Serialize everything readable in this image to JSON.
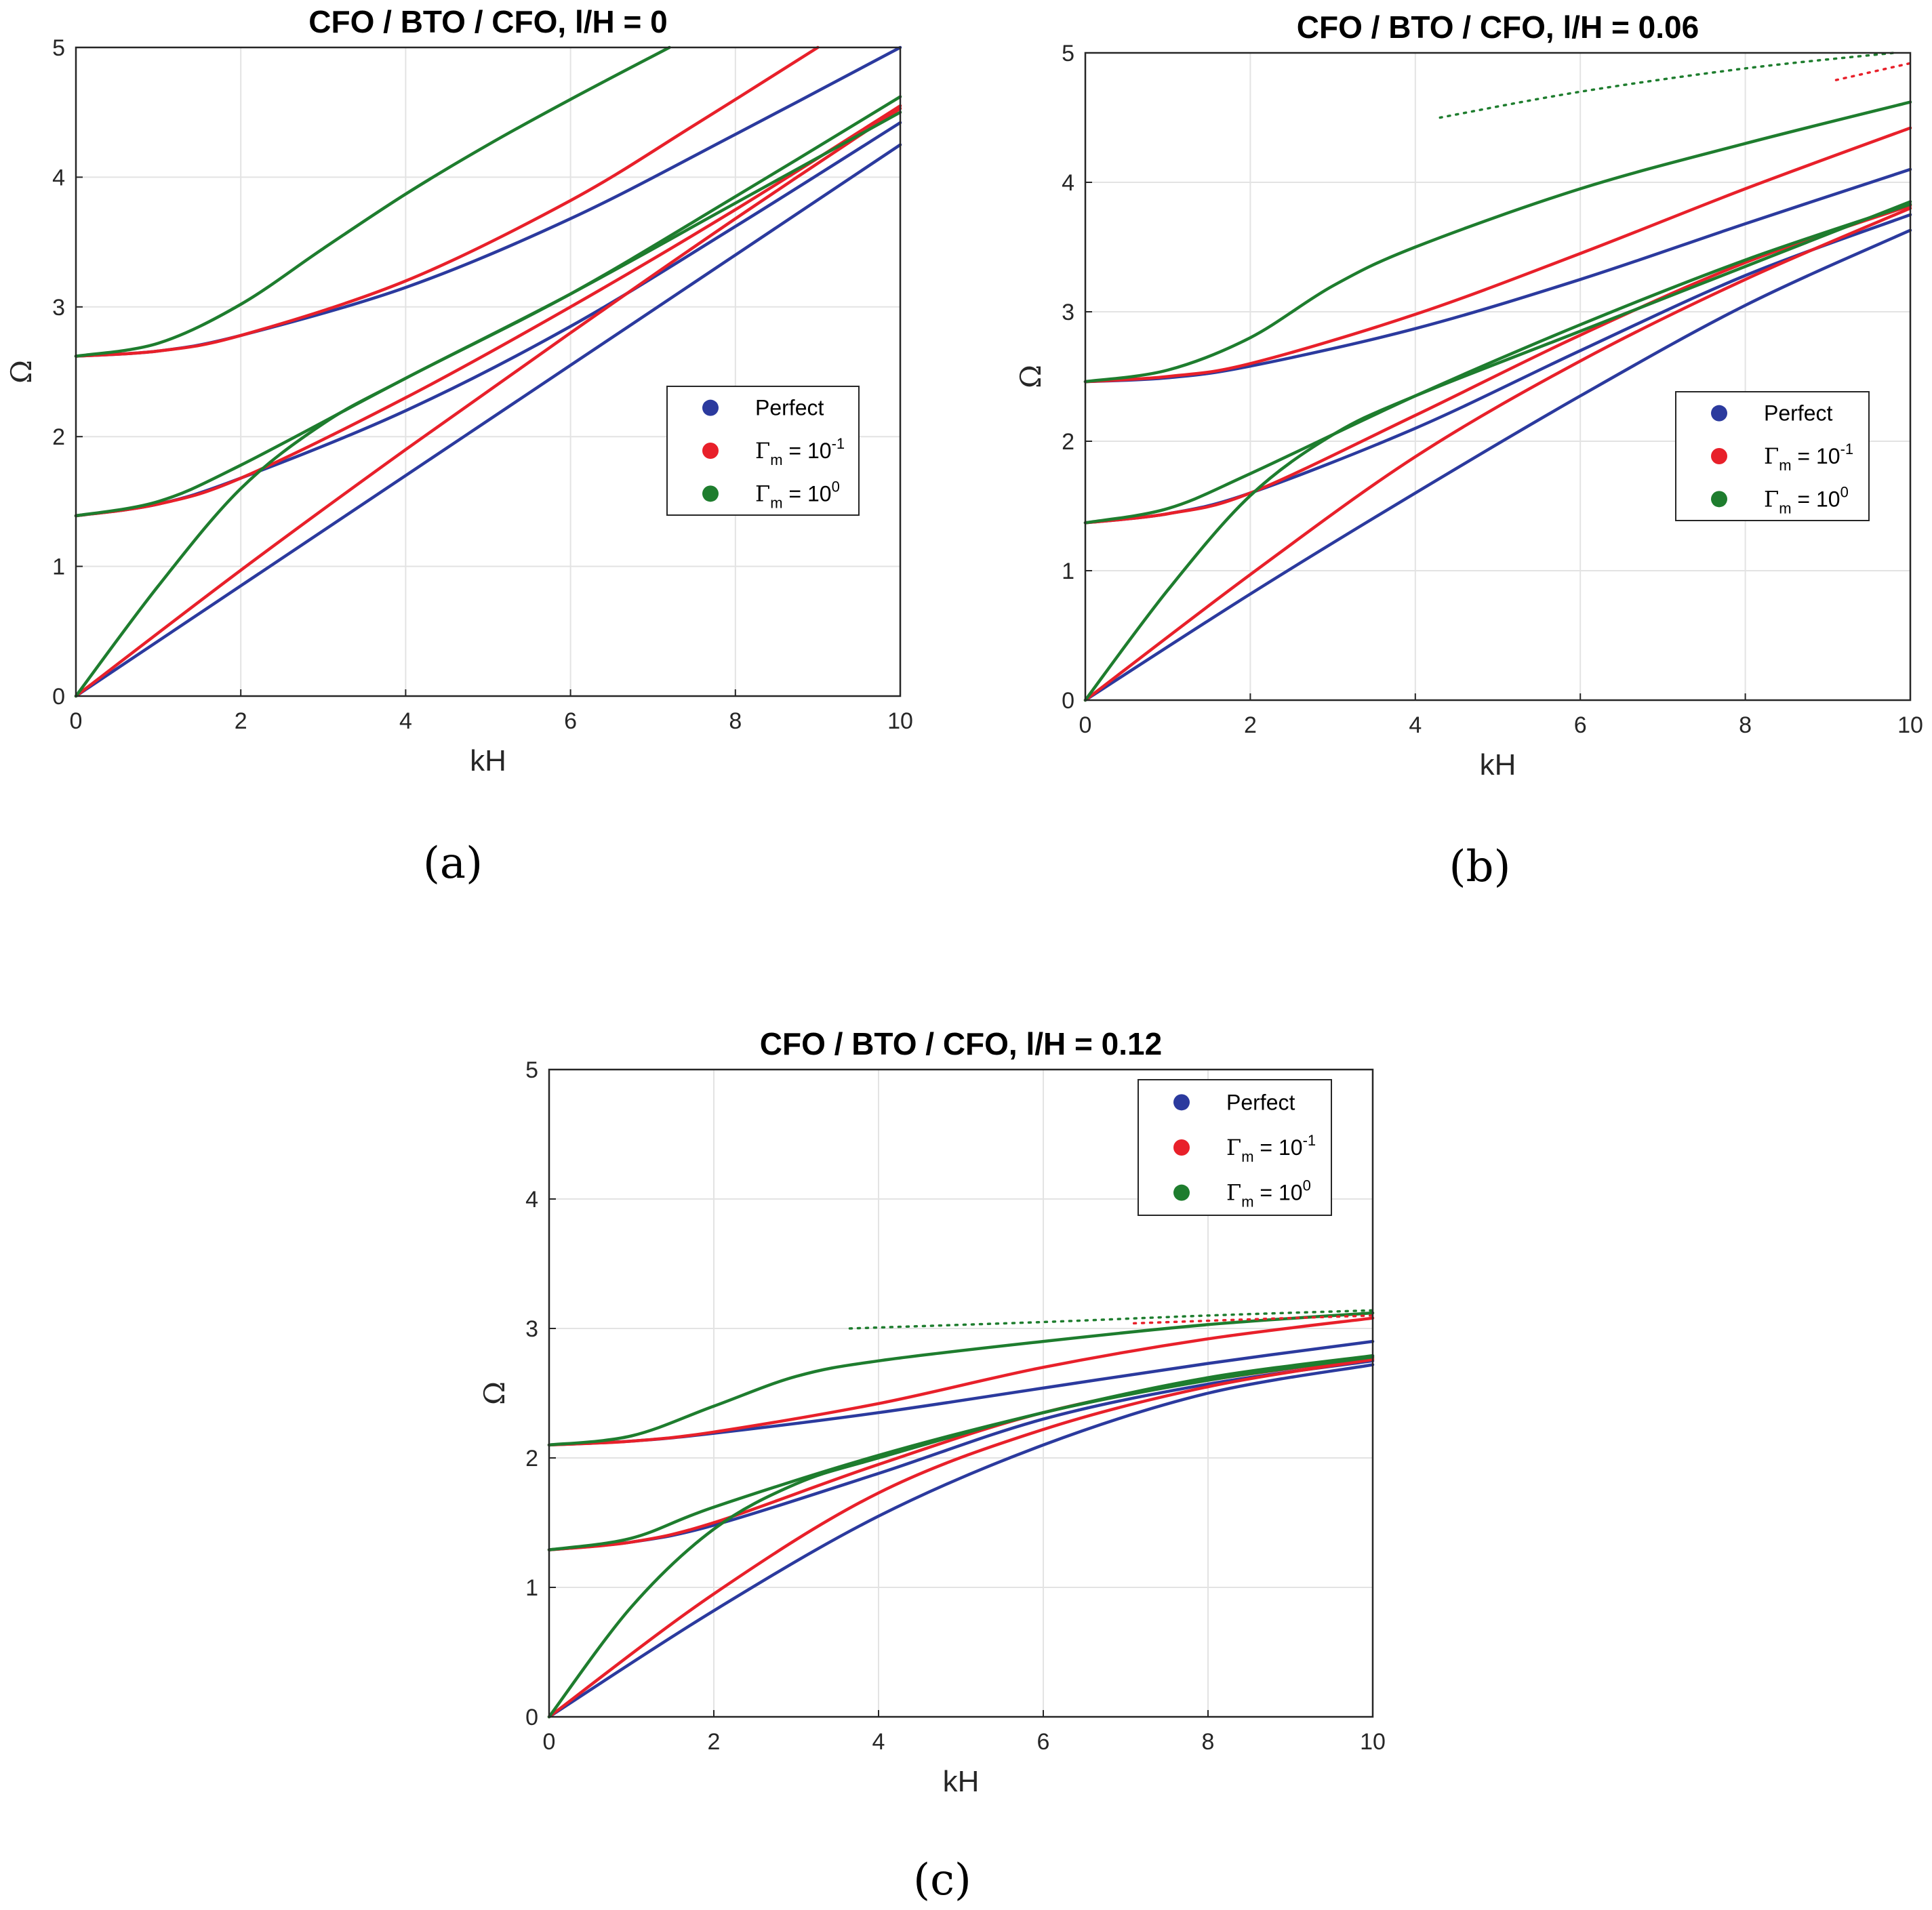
{
  "colors": {
    "perfect": "#2b3a9e",
    "gamma_m1": "#e8202a",
    "gamma_0": "#1e7d2e"
  },
  "chart_data": [
    {
      "type": "line",
      "panel": "a",
      "caption": "(a)",
      "title": "CFO / BTO / CFO, l/H = 0",
      "xlabel": "kH",
      "ylabel": "Ω",
      "xlim": [
        0,
        10
      ],
      "ylim": [
        0,
        5
      ],
      "xticks": [
        "0",
        "2",
        "4",
        "6",
        "8",
        "10"
      ],
      "yticks": [
        "0",
        "1",
        "2",
        "3",
        "4",
        "5"
      ],
      "grid": true,
      "legend_position": "right",
      "legend": [
        {
          "key": "perfect",
          "label": "Perfect"
        },
        {
          "key": "gamma_m1",
          "label_main": "Γ",
          "label_sub": "m",
          "label_mid": " = 10",
          "label_sup": "-1"
        },
        {
          "key": "gamma_0",
          "label_main": "Γ",
          "label_sub": "m",
          "label_mid": " = 10",
          "label_sup": "0"
        }
      ],
      "series": [
        {
          "key": "perfect",
          "name": "Perfect mode 1",
          "x": [
            0,
            2,
            4,
            6,
            8,
            10
          ],
          "y": [
            0,
            0.85,
            1.7,
            2.55,
            3.4,
            4.25
          ]
        },
        {
          "key": "perfect",
          "name": "Perfect mode 2",
          "x": [
            0,
            1,
            2,
            4,
            6,
            8,
            10
          ],
          "y": [
            1.39,
            1.48,
            1.68,
            2.2,
            2.85,
            3.62,
            4.42
          ]
        },
        {
          "key": "perfect",
          "name": "Perfect mode 3",
          "x": [
            0,
            1,
            2,
            4,
            6,
            8,
            10
          ],
          "y": [
            2.62,
            2.66,
            2.78,
            3.15,
            3.68,
            4.33,
            5.0
          ]
        },
        {
          "key": "gamma_m1",
          "name": "Γm=10^-1 mode 1",
          "x": [
            0,
            2,
            4,
            6,
            8,
            10
          ],
          "y": [
            0,
            0.97,
            1.9,
            2.8,
            3.68,
            4.53
          ]
        },
        {
          "key": "gamma_m1",
          "name": "Γm=10^-1 mode 2",
          "x": [
            0,
            1,
            2,
            4,
            6,
            8,
            10
          ],
          "y": [
            1.39,
            1.48,
            1.68,
            2.3,
            3.0,
            3.75,
            4.55
          ]
        },
        {
          "key": "gamma_m1",
          "name": "Γm=10^-1 mode 3",
          "x": [
            0,
            1,
            2,
            4,
            6,
            7.5,
            9
          ],
          "y": [
            2.62,
            2.66,
            2.78,
            3.2,
            3.82,
            4.4,
            5.0
          ]
        },
        {
          "key": "gamma_0",
          "name": "Γm=10^0 mode 1",
          "x": [
            0,
            1,
            2,
            3,
            4,
            6,
            8,
            10
          ],
          "y": [
            0,
            0.85,
            1.6,
            2.1,
            2.45,
            3.1,
            3.8,
            4.5
          ]
        },
        {
          "key": "gamma_0",
          "name": "Γm=10^0 mode 2",
          "x": [
            0,
            1,
            2,
            4,
            6,
            8,
            10
          ],
          "y": [
            1.39,
            1.5,
            1.78,
            2.45,
            3.1,
            3.85,
            4.62
          ]
        },
        {
          "key": "gamma_0",
          "name": "Γm=10^0 mode 3",
          "x": [
            0,
            1,
            2,
            3,
            4,
            5,
            6,
            7.2
          ],
          "y": [
            2.62,
            2.72,
            3.02,
            3.45,
            3.87,
            4.25,
            4.6,
            5.0
          ]
        }
      ]
    },
    {
      "type": "line",
      "panel": "b",
      "caption": "(b)",
      "title": "CFO / BTO / CFO, l/H = 0.06",
      "xlabel": "kH",
      "ylabel": "Ω",
      "xlim": [
        0,
        10
      ],
      "ylim": [
        0,
        5
      ],
      "xticks": [
        "0",
        "2",
        "4",
        "6",
        "8",
        "10"
      ],
      "yticks": [
        "0",
        "1",
        "2",
        "3",
        "4",
        "5"
      ],
      "grid": true,
      "legend_position": "right",
      "legend": [
        {
          "key": "perfect",
          "label": "Perfect"
        },
        {
          "key": "gamma_m1",
          "label_main": "Γ",
          "label_sub": "m",
          "label_mid": " = 10",
          "label_sup": "-1"
        },
        {
          "key": "gamma_0",
          "label_main": "Γ",
          "label_sub": "m",
          "label_mid": " = 10",
          "label_sup": "0"
        }
      ],
      "series": [
        {
          "key": "perfect",
          "name": "Perfect mode 1",
          "x": [
            0,
            2,
            4,
            6,
            8,
            10
          ],
          "y": [
            0,
            0.82,
            1.6,
            2.35,
            3.05,
            3.63
          ]
        },
        {
          "key": "perfect",
          "name": "Perfect mode 2",
          "x": [
            0,
            1,
            2,
            4,
            6,
            8,
            10
          ],
          "y": [
            1.37,
            1.44,
            1.6,
            2.1,
            2.7,
            3.28,
            3.75
          ]
        },
        {
          "key": "perfect",
          "name": "Perfect mode 3",
          "x": [
            0,
            1,
            2,
            4,
            6,
            8,
            10
          ],
          "y": [
            2.46,
            2.49,
            2.58,
            2.87,
            3.25,
            3.68,
            4.1
          ]
        },
        {
          "key": "gamma_m1",
          "name": "Γm=10^-1 mode 1",
          "x": [
            0,
            2,
            4,
            6,
            8,
            10
          ],
          "y": [
            0,
            0.97,
            1.88,
            2.62,
            3.25,
            3.8
          ]
        },
        {
          "key": "gamma_m1",
          "name": "Γm=10^-1 mode 2",
          "x": [
            0,
            1,
            2,
            4,
            6,
            8,
            10
          ],
          "y": [
            1.37,
            1.44,
            1.6,
            2.2,
            2.82,
            3.38,
            3.82
          ]
        },
        {
          "key": "gamma_m1",
          "name": "Γm=10^-1 mode 3",
          "x": [
            0,
            1,
            2,
            4,
            6,
            8,
            10
          ],
          "y": [
            2.46,
            2.5,
            2.6,
            2.98,
            3.45,
            3.95,
            4.42
          ]
        },
        {
          "key": "gamma_0",
          "name": "Γm=10^0 mode 1",
          "x": [
            0,
            1,
            2,
            3,
            4,
            6,
            8,
            10
          ],
          "y": [
            0,
            0.85,
            1.58,
            2.05,
            2.35,
            2.85,
            3.35,
            3.85
          ]
        },
        {
          "key": "gamma_0",
          "name": "Γm=10^0 mode 2",
          "x": [
            0,
            1,
            2,
            4,
            6,
            8,
            10
          ],
          "y": [
            1.37,
            1.48,
            1.75,
            2.35,
            2.9,
            3.4,
            3.83
          ]
        },
        {
          "key": "gamma_0",
          "name": "Γm=10^0 mode 3",
          "x": [
            0,
            1,
            2,
            3,
            4,
            6,
            8,
            10
          ],
          "y": [
            2.46,
            2.55,
            2.8,
            3.2,
            3.5,
            3.95,
            4.3,
            4.62
          ]
        },
        {
          "key": "gamma_0",
          "name": "Γm=10^0 mode 4 (dotted)",
          "style": "dotted",
          "x": [
            4.3,
            6,
            8,
            9.8
          ],
          "y": [
            4.5,
            4.7,
            4.88,
            5.0
          ]
        },
        {
          "key": "gamma_m1",
          "name": "Γm=10^-1 mode 4 (dotted)",
          "style": "dotted",
          "x": [
            9.1,
            10
          ],
          "y": [
            4.79,
            4.92
          ]
        }
      ]
    },
    {
      "type": "line",
      "panel": "c",
      "caption": "(c)",
      "title": "CFO / BTO / CFO, l/H = 0.12",
      "xlabel": "kH",
      "ylabel": "Ω",
      "xlim": [
        0,
        10
      ],
      "ylim": [
        0,
        5
      ],
      "xticks": [
        "0",
        "2",
        "4",
        "6",
        "8",
        "10"
      ],
      "yticks": [
        "0",
        "1",
        "2",
        "3",
        "4",
        "5"
      ],
      "grid": true,
      "legend_position": "top-right",
      "legend": [
        {
          "key": "perfect",
          "label": "Perfect"
        },
        {
          "key": "gamma_m1",
          "label_main": "Γ",
          "label_sub": "m",
          "label_mid": " = 10",
          "label_sup": "-1"
        },
        {
          "key": "gamma_0",
          "label_main": "Γ",
          "label_sub": "m",
          "label_mid": " = 10",
          "label_sup": "0"
        }
      ],
      "series": [
        {
          "key": "perfect",
          "name": "Perfect mode 1",
          "x": [
            0,
            2,
            4,
            6,
            8,
            10
          ],
          "y": [
            0,
            0.82,
            1.55,
            2.1,
            2.5,
            2.72
          ]
        },
        {
          "key": "perfect",
          "name": "Perfect mode 2",
          "x": [
            0,
            1,
            2,
            4,
            6,
            8,
            10
          ],
          "y": [
            1.29,
            1.35,
            1.48,
            1.88,
            2.3,
            2.57,
            2.75
          ]
        },
        {
          "key": "perfect",
          "name": "Perfect mode 3",
          "x": [
            0,
            1,
            2,
            4,
            6,
            8,
            10
          ],
          "y": [
            2.1,
            2.13,
            2.19,
            2.35,
            2.54,
            2.73,
            2.9
          ]
        },
        {
          "key": "gamma_m1",
          "name": "Γm=10^-1 mode 1",
          "x": [
            0,
            2,
            4,
            6,
            8,
            10
          ],
          "y": [
            0,
            0.95,
            1.73,
            2.22,
            2.55,
            2.76
          ]
        },
        {
          "key": "gamma_m1",
          "name": "Γm=10^-1 mode 2",
          "x": [
            0,
            1,
            2,
            4,
            6,
            8,
            10
          ],
          "y": [
            1.29,
            1.35,
            1.5,
            1.95,
            2.35,
            2.6,
            2.77
          ]
        },
        {
          "key": "gamma_m1",
          "name": "Γm=10^-1 mode 3",
          "x": [
            0,
            1,
            2,
            4,
            6,
            8,
            10
          ],
          "y": [
            2.1,
            2.13,
            2.2,
            2.42,
            2.7,
            2.92,
            3.08
          ]
        },
        {
          "key": "gamma_0",
          "name": "Γm=10^0 mode 1",
          "x": [
            0,
            1,
            2,
            3,
            4,
            6,
            8,
            10
          ],
          "y": [
            0,
            0.85,
            1.45,
            1.8,
            2.0,
            2.35,
            2.6,
            2.78
          ]
        },
        {
          "key": "gamma_0",
          "name": "Γm=10^0 mode 2",
          "x": [
            0,
            1,
            2,
            4,
            6,
            8,
            10
          ],
          "y": [
            1.29,
            1.38,
            1.62,
            2.02,
            2.35,
            2.62,
            2.79
          ]
        },
        {
          "key": "gamma_0",
          "name": "Γm=10^0 mode 3",
          "x": [
            0,
            1,
            2,
            3,
            4,
            6,
            8,
            10
          ],
          "y": [
            2.1,
            2.17,
            2.4,
            2.63,
            2.75,
            2.9,
            3.03,
            3.12
          ]
        },
        {
          "key": "gamma_0",
          "name": "Γm=10^0 mode 4 (dotted)",
          "style": "dotted",
          "x": [
            3.65,
            6,
            8,
            10
          ],
          "y": [
            3.0,
            3.05,
            3.1,
            3.14
          ]
        },
        {
          "key": "gamma_m1",
          "name": "Γm=10^-1 mode 4 (dotted)",
          "style": "dotted",
          "x": [
            7.1,
            8.5,
            10
          ],
          "y": [
            3.04,
            3.07,
            3.1
          ]
        }
      ]
    }
  ]
}
